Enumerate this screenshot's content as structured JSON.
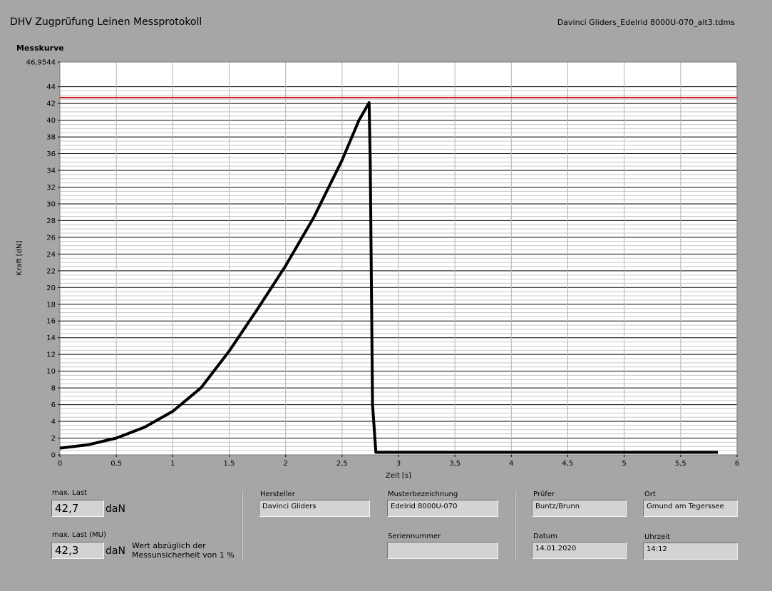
{
  "header": {
    "title": "DHV Zugprüfung Leinen Messprotokoll",
    "filename": "Davinci Gliders_Edelrid 8000U-070_alt3.tdms"
  },
  "chart_label": "Messkurve",
  "chart_data": {
    "type": "line",
    "xlabel": "Zeit [s]",
    "ylabel": "Kraft [dN]",
    "xlim": [
      0,
      6
    ],
    "ylim": [
      0,
      46.9544
    ],
    "x_ticks": [
      "0",
      "0,5",
      "1",
      "1,5",
      "2",
      "2,5",
      "3",
      "3,5",
      "4",
      "4,5",
      "5",
      "5,5",
      "6"
    ],
    "y_ticks": [
      "0",
      "2",
      "4",
      "6",
      "8",
      "10",
      "12",
      "14",
      "16",
      "18",
      "20",
      "22",
      "24",
      "26",
      "28",
      "30",
      "32",
      "34",
      "36",
      "38",
      "40",
      "42",
      "44"
    ],
    "y_max_label": "46,9544",
    "grid": true,
    "series": [
      {
        "color": "#000000",
        "x": [
          0,
          0.25,
          0.5,
          0.75,
          1.0,
          1.25,
          1.5,
          1.75,
          2.0,
          2.25,
          2.5,
          2.65,
          2.74,
          2.75,
          2.77,
          2.8,
          3.0,
          3.5,
          4.0,
          4.5,
          5.0,
          5.5,
          5.83
        ],
        "y": [
          0.8,
          1.2,
          2.0,
          3.3,
          5.2,
          8.0,
          12.4,
          17.4,
          22.6,
          28.4,
          35.2,
          40.0,
          42.1,
          35.0,
          6.0,
          0.3,
          0.3,
          0.3,
          0.3,
          0.3,
          0.3,
          0.3,
          0.3
        ]
      },
      {
        "color": "#cc1b1b",
        "x": [
          0,
          6
        ],
        "y": [
          42.7,
          42.7
        ]
      }
    ]
  },
  "results": {
    "max_last_label": "max. Last",
    "max_last_value": "42,7",
    "max_last_unit": "daN",
    "max_last_mu_label": "max. Last (MU)",
    "max_last_mu_value": "42,3",
    "max_last_mu_unit": "daN",
    "mu_note_line1": "Wert abzüglich der",
    "mu_note_line2": "Messunsicherheit von 1 %"
  },
  "fields": {
    "hersteller_label": "Hersteller",
    "hersteller_value": "Davinci Gliders",
    "muster_label": "Musterbezeichnung",
    "muster_value": "Edelrid 8000U-070",
    "serien_label": "Seriennummer",
    "serien_value": "",
    "pruefer_label": "Prüfer",
    "pruefer_value": "Buntz/Brunn",
    "ort_label": "Ort",
    "ort_value": "Gmund am Tegerssee",
    "datum_label": "Datum",
    "datum_value": "14.01.2020",
    "uhrzeit_label": "Uhrzeit",
    "uhrzeit_value": "14:12"
  }
}
